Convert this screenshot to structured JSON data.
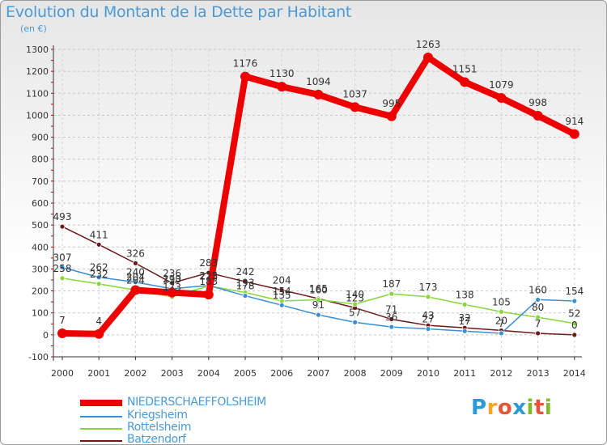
{
  "title": "Evolution du Montant de la Dette par Habitant",
  "unit": "(en €)",
  "logo": {
    "text": "Proxiti"
  },
  "chart_data": {
    "type": "line",
    "x": [
      "2000",
      "2001",
      "2002",
      "2003",
      "2004",
      "2005",
      "2006",
      "2007",
      "2008",
      "2009",
      "2010",
      "2011",
      "2012",
      "2013",
      "2014"
    ],
    "ylim": [
      -100,
      1300
    ],
    "yticks": [
      "-100",
      "0",
      "100",
      "200",
      "300",
      "400",
      "500",
      "600",
      "700",
      "800",
      "900",
      "1000",
      "1100",
      "1200",
      "1300"
    ],
    "grid": true,
    "legend_position": "bottom-left",
    "series": [
      {
        "name": "NIEDERSCHAEFFOLSHEIM",
        "color": "#ee0000",
        "values": [
          7,
          4,
          204,
          193,
          183,
          1176,
          1130,
          1094,
          1037,
          995,
          1263,
          1151,
          1079,
          998,
          914
        ],
        "labels": [
          "7",
          "4",
          "204",
          "193",
          "183",
          "1176",
          "1130",
          "1094",
          "1037",
          "995",
          "1263",
          "1151",
          "1079",
          "998",
          "914"
        ]
      },
      {
        "name": "Kriegsheim",
        "color": "#3b8fd0",
        "values": [
          307,
          262,
          240,
          210,
          225,
          178,
          135,
          91,
          57,
          36,
          27,
          17,
          7,
          160,
          154
        ],
        "labels": [
          "307",
          "262",
          "240",
          "210",
          "225",
          "178",
          "135",
          "91",
          "57",
          "36",
          "27",
          "17",
          "7",
          "160",
          "154"
        ]
      },
      {
        "name": "Rottelsheim",
        "color": "#88d53c",
        "values": [
          258,
          232,
          204,
          173,
          223,
          193,
          154,
          160,
          140,
          187,
          173,
          138,
          105,
          80,
          52
        ],
        "labels": [
          "258",
          "232",
          "204",
          "173",
          "223",
          "193",
          "154",
          "160",
          "140",
          "187",
          "173",
          "138",
          "105",
          "80",
          "52"
        ]
      },
      {
        "name": "Batzendorf",
        "color": "#6b1a1a",
        "values": [
          493,
          411,
          326,
          236,
          283,
          242,
          204,
          165,
          123,
          71,
          43,
          32,
          20,
          7,
          0
        ],
        "labels": [
          "493",
          "411",
          "326",
          "236",
          "283",
          "242",
          "204",
          "165",
          "123",
          "71",
          "43",
          "32",
          "20",
          "7",
          "0"
        ]
      }
    ]
  }
}
